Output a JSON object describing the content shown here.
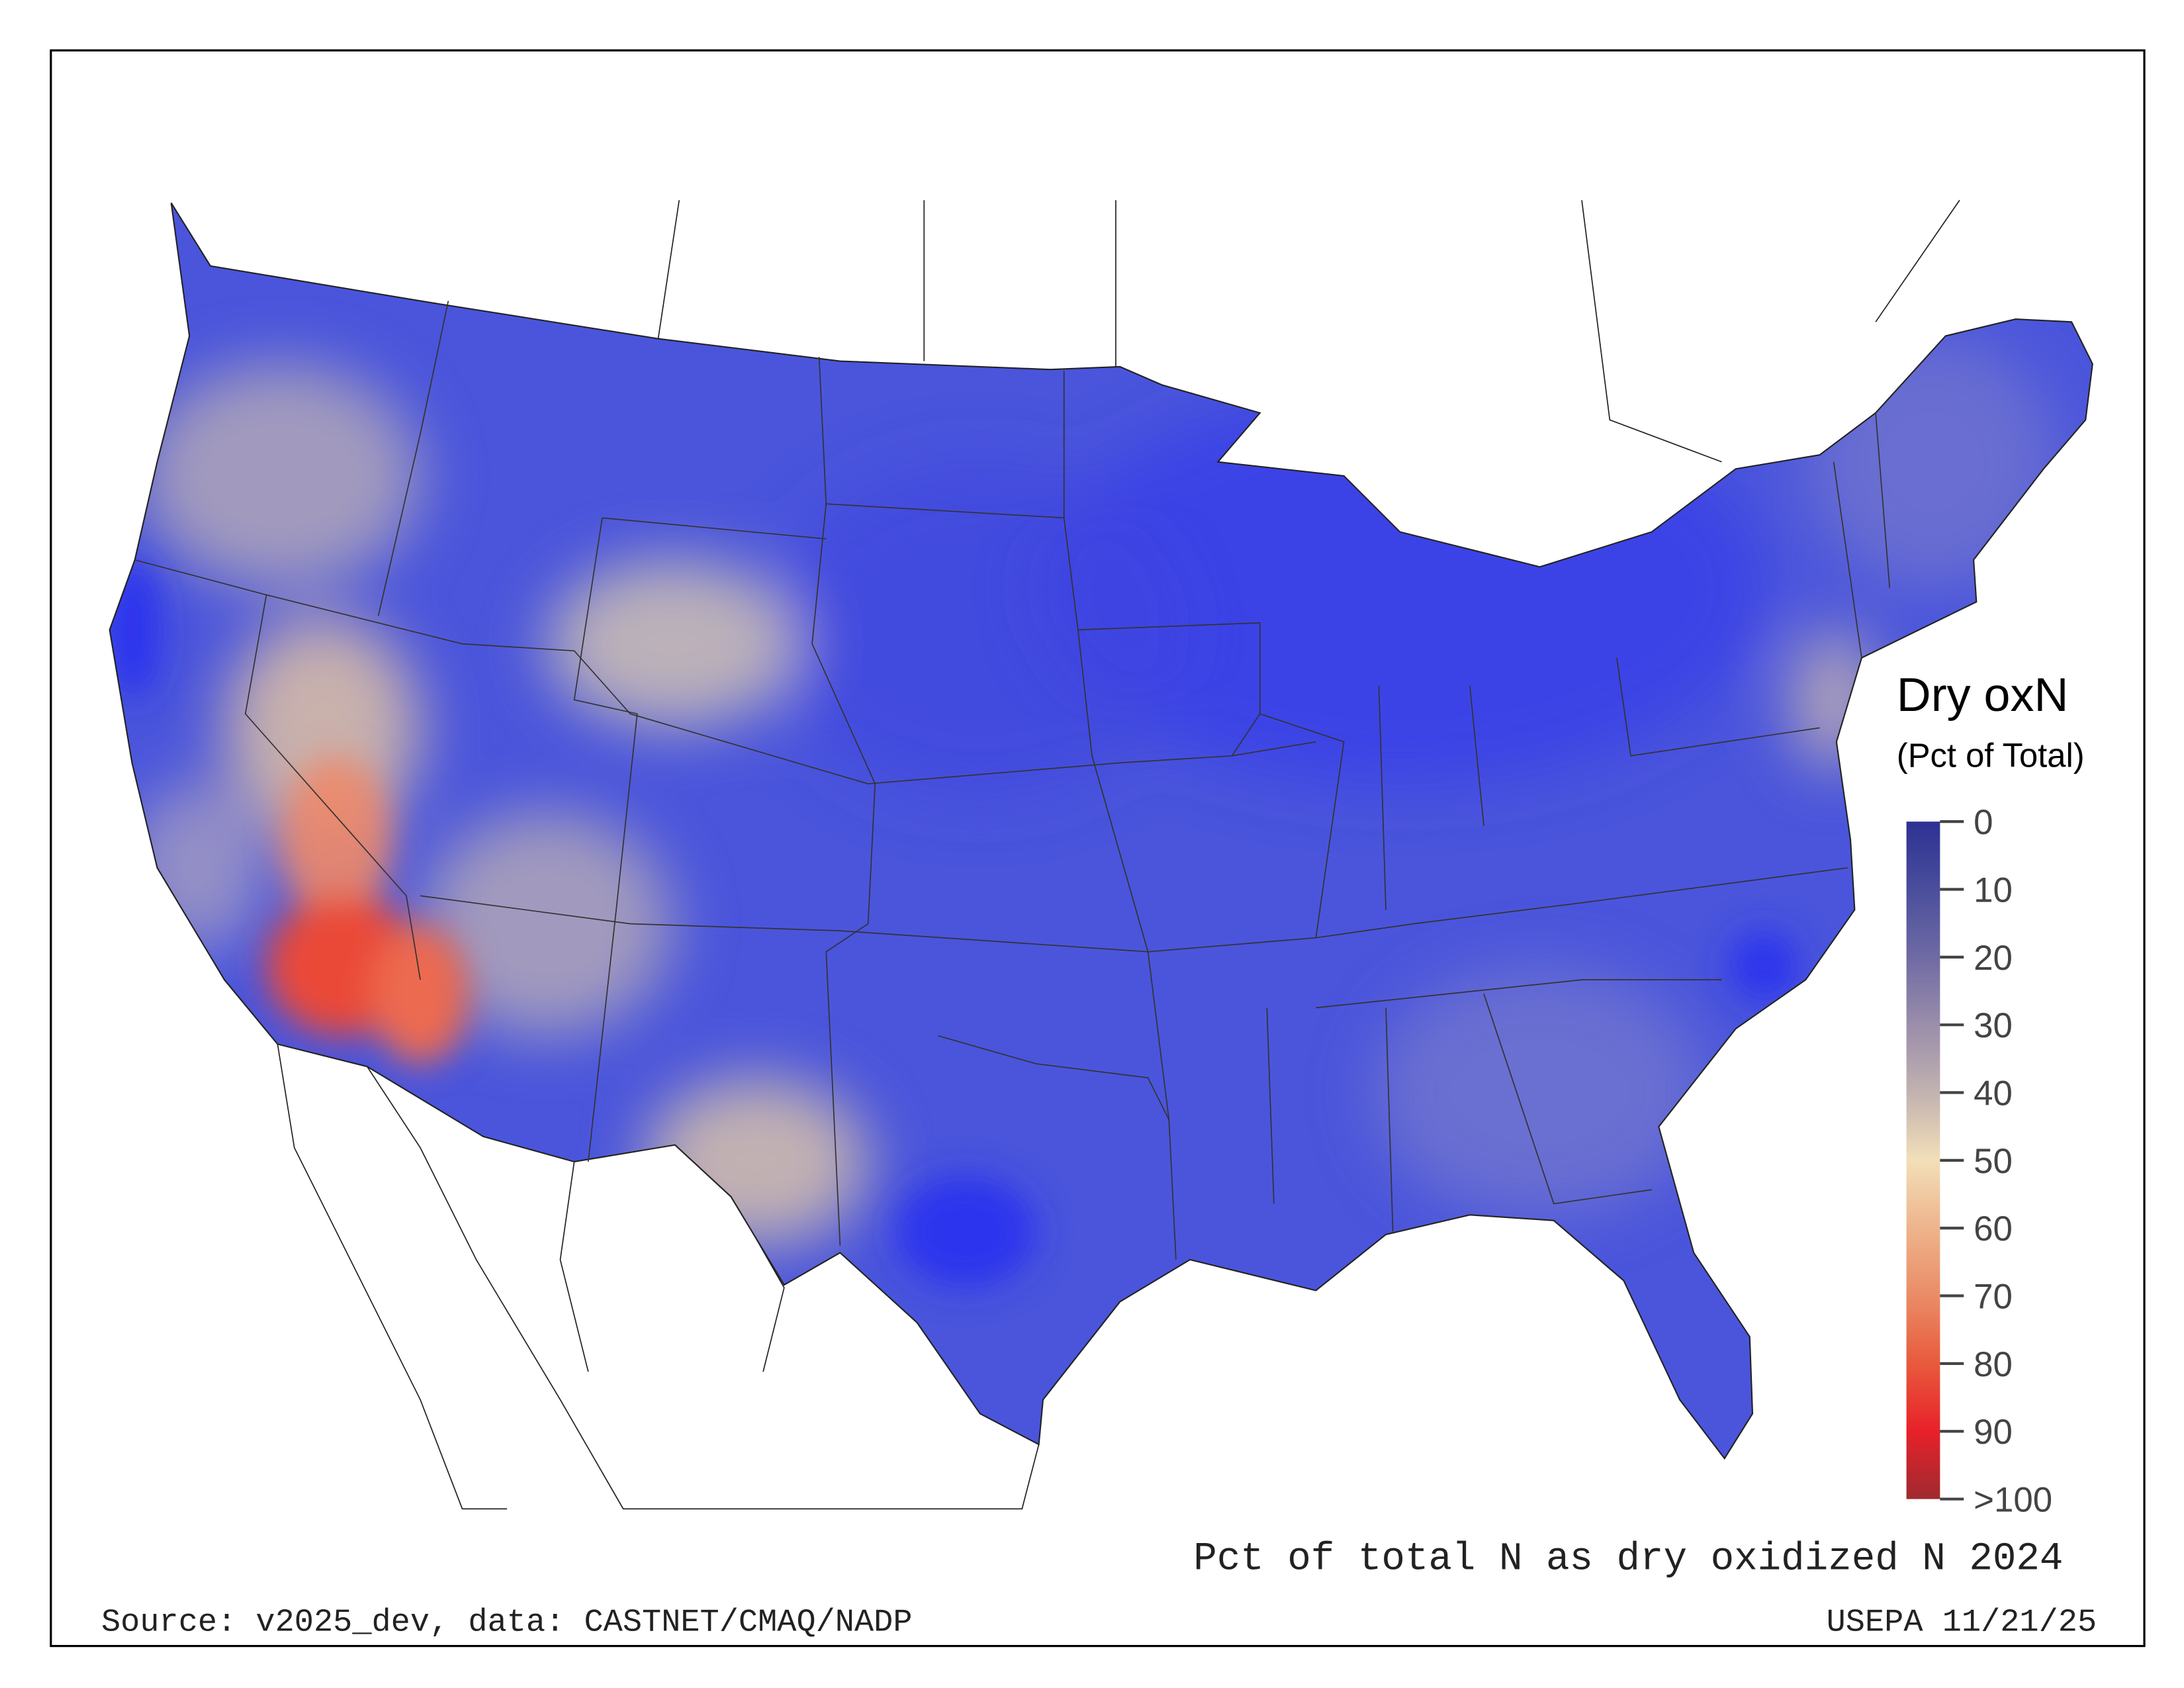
{
  "map": {
    "region": "Contiguous United States",
    "base_color": "#4650e0",
    "hotspot_color": "#e8463a",
    "mid_color": "#ecd6b0"
  },
  "legend": {
    "title": "Dry oxN",
    "subtitle": "(Pct of Total)",
    "ticks": [
      "0",
      "10",
      "20",
      "30",
      "40",
      "50",
      "60",
      "70",
      "80",
      "90",
      ">100"
    ],
    "colors": [
      "#2e3192",
      "#4a4e9c",
      "#6f6aa4",
      "#9a8eaa",
      "#c2b2b0",
      "#f2dfb8",
      "#eeb48c",
      "#ea8c66",
      "#e85a3c",
      "#e8212a",
      "#9e2a2f"
    ]
  },
  "footer": {
    "title": "Pct of total N as dry oxidized N 2024",
    "source": "Source: v2025_dev, data: CASTNET/CMAQ/NADP",
    "credit": "USEPA 11/21/25"
  },
  "chart_data": {
    "type": "heatmap",
    "title": "Pct of total N as dry oxidized N 2024",
    "colorbar_label": "Dry oxN (Pct of Total)",
    "colorbar_range": [
      0,
      100
    ],
    "colorbar_ticks": [
      "0",
      "10",
      "20",
      "30",
      "40",
      "50",
      "60",
      "70",
      "80",
      "90",
      ">100"
    ]
  }
}
